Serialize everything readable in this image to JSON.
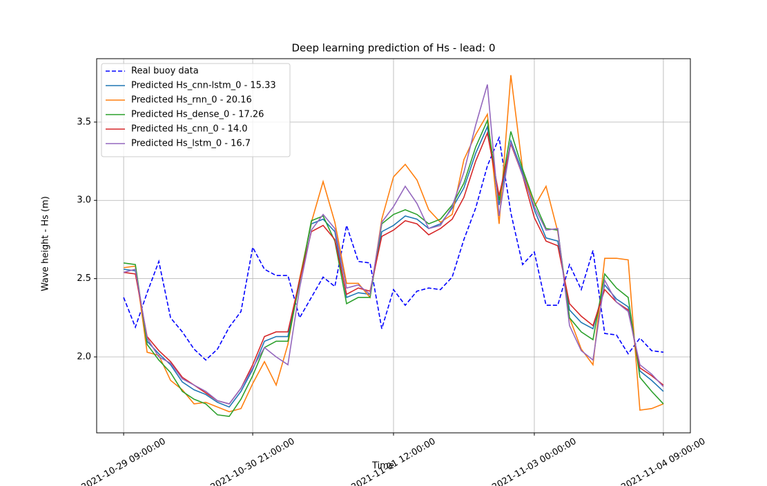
{
  "chart_data": {
    "type": "line",
    "title": "Deep learning prediction of Hs - lead: 0",
    "xlabel": "Time",
    "ylabel": "Wave height - Hs (m)",
    "categories": [
      "2021-10-29 09:00:00",
      null,
      null,
      null,
      null,
      null,
      null,
      null,
      null,
      null,
      null,
      "2021-10-30 21:00:00",
      null,
      null,
      null,
      null,
      null,
      null,
      null,
      null,
      null,
      null,
      null,
      "2021-11-01 12:00:00",
      null,
      null,
      null,
      null,
      null,
      null,
      null,
      null,
      null,
      null,
      null,
      "2021-11-03 00:00:00",
      null,
      null,
      null,
      null,
      null,
      null,
      null,
      null,
      null,
      null,
      "2021-11-04 09:00:00"
    ],
    "ylim": [
      1.515,
      3.905
    ],
    "yticks": [
      {
        "value": 2.0,
        "label": "2.0"
      },
      {
        "value": 2.5,
        "label": "2.5"
      },
      {
        "value": 3.0,
        "label": "3.0"
      },
      {
        "value": 3.5,
        "label": "3.5"
      }
    ],
    "grid": true,
    "legend": "upper left",
    "series": [
      {
        "name": "Real buoy data",
        "color": "#0000ff",
        "linestyle": "dashed",
        "values": [
          2.38,
          2.19,
          2.41,
          2.61,
          2.25,
          2.16,
          2.05,
          1.98,
          2.05,
          2.19,
          2.29,
          2.7,
          2.56,
          2.52,
          2.52,
          2.25,
          2.38,
          2.51,
          2.45,
          2.84,
          2.61,
          2.6,
          2.18,
          2.43,
          2.33,
          2.42,
          2.44,
          2.43,
          2.51,
          2.75,
          2.95,
          3.22,
          3.4,
          2.92,
          2.59,
          2.67,
          2.33,
          2.33,
          2.59,
          2.43,
          2.68,
          2.15,
          2.14,
          2.02,
          2.12,
          2.04,
          2.03
        ]
      },
      {
        "name": "Predicted Hs_cnn-lstm_0 - 15.33",
        "color": "#1f77b4",
        "linestyle": "solid",
        "values": [
          2.56,
          2.55,
          2.1,
          2.02,
          1.95,
          1.84,
          1.79,
          1.76,
          1.71,
          1.68,
          1.78,
          1.92,
          2.1,
          2.13,
          2.13,
          2.5,
          2.85,
          2.88,
          2.8,
          2.38,
          2.41,
          2.4,
          2.8,
          2.84,
          2.9,
          2.88,
          2.82,
          2.85,
          2.95,
          3.08,
          3.3,
          3.47,
          2.97,
          3.38,
          3.18,
          2.94,
          2.76,
          2.74,
          2.3,
          2.22,
          2.18,
          2.46,
          2.37,
          2.32,
          1.91,
          1.85,
          1.78
        ]
      },
      {
        "name": "Predicted Hs_rnn_0 - 20.16",
        "color": "#ff7f0e",
        "linestyle": "solid",
        "values": [
          2.57,
          2.58,
          2.03,
          2.01,
          1.85,
          1.79,
          1.7,
          1.71,
          1.68,
          1.65,
          1.67,
          1.83,
          1.97,
          1.82,
          2.08,
          2.5,
          2.86,
          3.12,
          2.86,
          2.47,
          2.47,
          2.38,
          2.88,
          3.15,
          3.23,
          3.13,
          2.94,
          2.86,
          2.91,
          3.26,
          3.42,
          3.55,
          2.85,
          3.8,
          3.2,
          2.96,
          3.09,
          2.8,
          2.25,
          2.05,
          1.95,
          2.63,
          2.63,
          2.62,
          1.66,
          1.67,
          1.7
        ]
      },
      {
        "name": "Predicted Hs_dense_0 - 17.26",
        "color": "#2ca02c",
        "linestyle": "solid",
        "values": [
          2.6,
          2.59,
          2.08,
          1.98,
          1.9,
          1.78,
          1.73,
          1.7,
          1.63,
          1.62,
          1.73,
          1.88,
          2.06,
          2.1,
          2.1,
          2.48,
          2.87,
          2.9,
          2.74,
          2.34,
          2.38,
          2.38,
          2.85,
          2.91,
          2.94,
          2.91,
          2.85,
          2.88,
          2.97,
          3.11,
          3.34,
          3.51,
          3.0,
          3.44,
          3.2,
          2.99,
          2.82,
          2.81,
          2.25,
          2.16,
          2.11,
          2.53,
          2.44,
          2.38,
          1.87,
          1.78,
          1.7
        ]
      },
      {
        "name": "Predicted Hs_cnn_0 - 14.0",
        "color": "#d62728",
        "linestyle": "solid",
        "values": [
          2.54,
          2.53,
          2.13,
          2.04,
          1.97,
          1.87,
          1.82,
          1.77,
          1.72,
          1.7,
          1.8,
          1.95,
          2.13,
          2.16,
          2.16,
          2.49,
          2.8,
          2.84,
          2.75,
          2.4,
          2.44,
          2.42,
          2.77,
          2.81,
          2.87,
          2.85,
          2.78,
          2.82,
          2.88,
          3.02,
          3.25,
          3.43,
          3.03,
          3.36,
          3.16,
          2.89,
          2.74,
          2.71,
          2.34,
          2.26,
          2.2,
          2.43,
          2.35,
          2.3,
          1.93,
          1.88,
          1.82
        ]
      },
      {
        "name": "Predicted Hs_lstm_0 - 16.7",
        "color": "#9467bd",
        "linestyle": "solid",
        "values": [
          2.54,
          2.56,
          2.12,
          2.0,
          1.96,
          1.86,
          1.82,
          1.78,
          1.72,
          1.7,
          1.8,
          1.93,
          2.06,
          2.0,
          1.95,
          2.44,
          2.81,
          2.91,
          2.82,
          2.44,
          2.46,
          2.4,
          2.86,
          2.96,
          3.09,
          2.98,
          2.82,
          2.84,
          2.96,
          3.18,
          3.48,
          3.74,
          2.9,
          3.37,
          3.16,
          2.96,
          2.81,
          2.82,
          2.2,
          2.04,
          1.98,
          2.49,
          2.35,
          2.29,
          1.95,
          1.89,
          1.81
        ]
      }
    ]
  }
}
